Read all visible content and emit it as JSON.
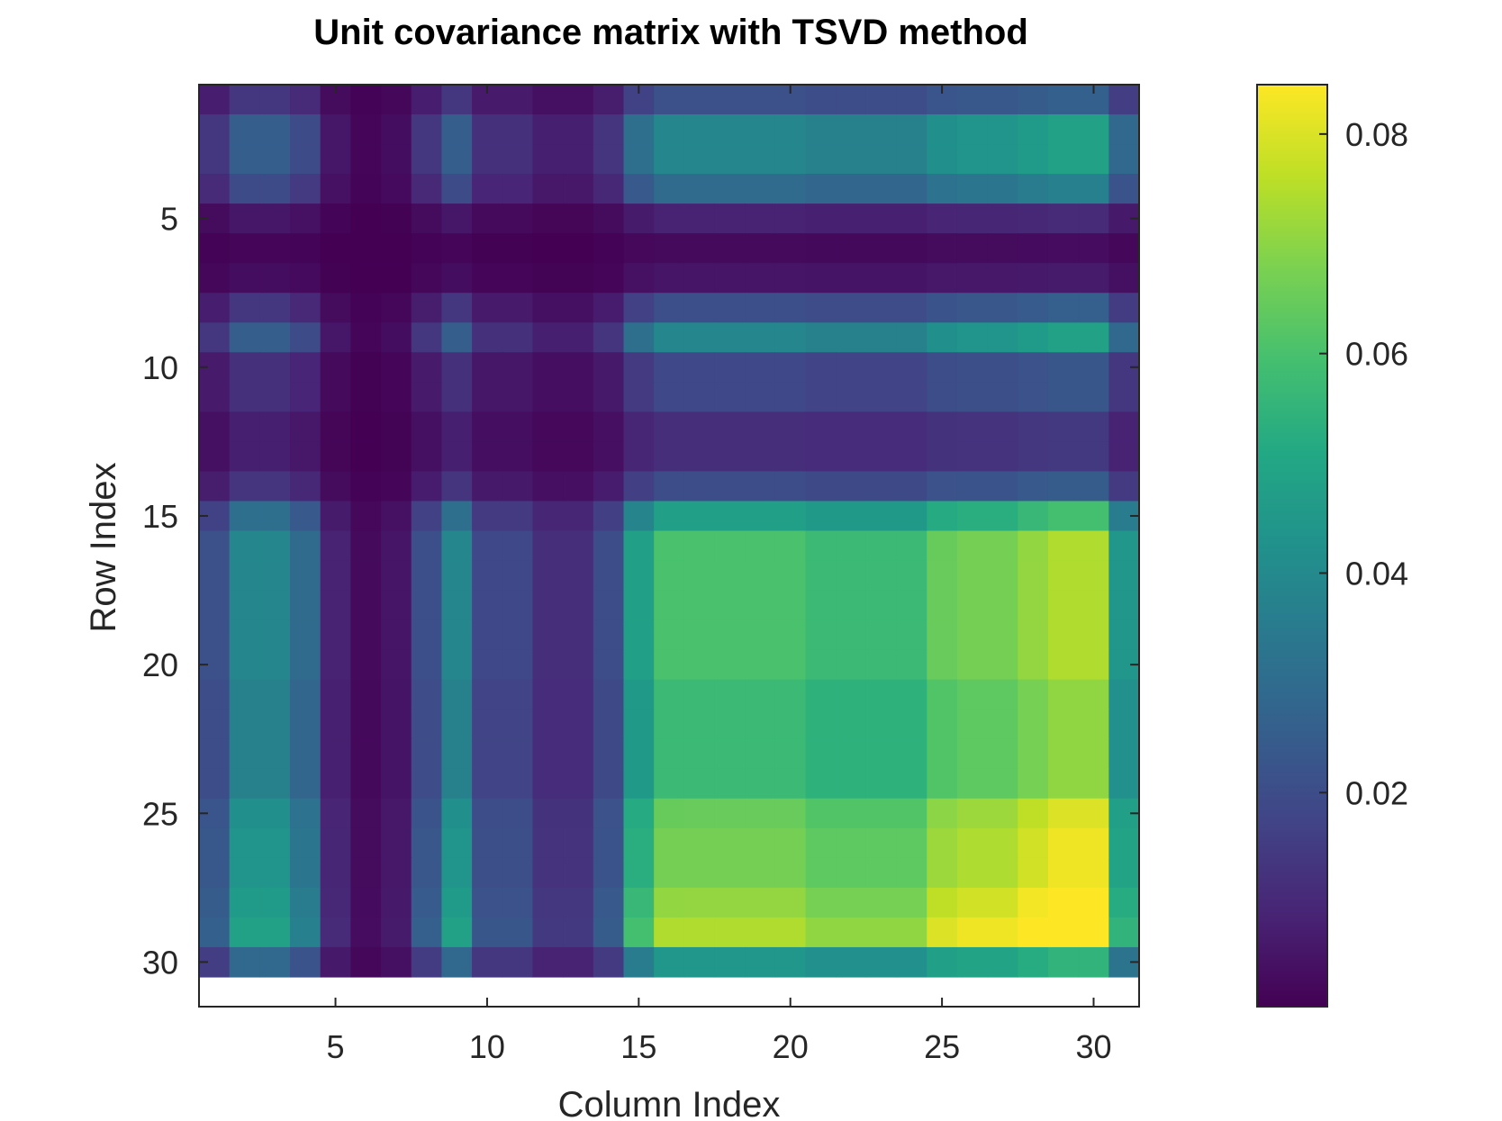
{
  "chart_data": {
    "type": "heatmap",
    "title": "Unit covariance matrix with TSVD method",
    "xlabel": "Column Index",
    "ylabel": "Row Index",
    "rows": 31,
    "cols": 31,
    "x_ticks": [
      5,
      10,
      15,
      20,
      25,
      30
    ],
    "y_ticks": [
      5,
      10,
      15,
      20,
      25,
      30
    ],
    "colorbar": {
      "colormap": "viridis",
      "clim": [
        0.0005,
        0.0845
      ],
      "ticks": [
        0.02,
        0.04,
        0.06,
        0.08
      ],
      "tick_labels": [
        "0.02",
        "0.04",
        "0.06",
        "0.08"
      ]
    },
    "colors": {
      "axis": "#262626",
      "background": "#ffffff",
      "viridis_min": "#440154",
      "viridis_max": "#fde725"
    },
    "matrix": [
      [
        0.0074,
        0.0137,
        0.0137,
        0.0104,
        0.0029,
        0.0009,
        0.0019,
        0.0073,
        0.0137,
        0.0065,
        0.0065,
        0.0041,
        0.0041,
        0.0071,
        0.0168,
        0.0211,
        0.0211,
        0.0211,
        0.0211,
        0.0211,
        0.02,
        0.02,
        0.02,
        0.02,
        0.0227,
        0.0234,
        0.0234,
        0.0248,
        0.0261,
        0.0261,
        0.0155
      ],
      [
        0.0137,
        0.0255,
        0.0255,
        0.0194,
        0.0055,
        0.0017,
        0.0035,
        0.0136,
        0.0255,
        0.0121,
        0.0121,
        0.0076,
        0.0076,
        0.0131,
        0.0312,
        0.0391,
        0.0392,
        0.0392,
        0.0392,
        0.0392,
        0.0371,
        0.0371,
        0.0371,
        0.0371,
        0.0422,
        0.0435,
        0.0435,
        0.046,
        0.0484,
        0.0484,
        0.0288
      ],
      [
        0.0137,
        0.0255,
        0.0255,
        0.0194,
        0.0055,
        0.0017,
        0.0035,
        0.0136,
        0.0255,
        0.0121,
        0.0121,
        0.0076,
        0.0076,
        0.0131,
        0.0312,
        0.0391,
        0.0392,
        0.0392,
        0.0392,
        0.0392,
        0.0371,
        0.0371,
        0.0371,
        0.0371,
        0.0422,
        0.0435,
        0.0435,
        0.046,
        0.0484,
        0.0484,
        0.0288
      ],
      [
        0.0104,
        0.0194,
        0.0194,
        0.0148,
        0.0042,
        0.0013,
        0.0027,
        0.0103,
        0.0194,
        0.0092,
        0.0092,
        0.0058,
        0.0058,
        0.01,
        0.0237,
        0.0298,
        0.0298,
        0.0298,
        0.0298,
        0.0298,
        0.0282,
        0.0282,
        0.0282,
        0.0282,
        0.032,
        0.033,
        0.033,
        0.035,
        0.0368,
        0.0368,
        0.0219
      ],
      [
        0.0029,
        0.0055,
        0.0055,
        0.0042,
        0.0012,
        0.0004,
        0.0008,
        0.0029,
        0.0055,
        0.0026,
        0.0026,
        0.0016,
        0.0016,
        0.0028,
        0.0067,
        0.0084,
        0.0084,
        0.0084,
        0.0084,
        0.0084,
        0.008,
        0.008,
        0.008,
        0.008,
        0.0091,
        0.0094,
        0.0094,
        0.0099,
        0.0104,
        0.0104,
        0.0062
      ],
      [
        0.0009,
        0.0017,
        0.0017,
        0.0013,
        0.0004,
        0.0001,
        0.0002,
        0.0009,
        0.0017,
        0.0008,
        0.0008,
        0.0005,
        0.0005,
        0.0009,
        0.0021,
        0.0026,
        0.0026,
        0.0026,
        0.0026,
        0.0026,
        0.0025,
        0.0025,
        0.0025,
        0.0025,
        0.0028,
        0.0029,
        0.0029,
        0.003,
        0.0032,
        0.0032,
        0.0019
      ],
      [
        0.0019,
        0.0035,
        0.0035,
        0.0027,
        0.0008,
        0.0002,
        0.0005,
        0.0019,
        0.0035,
        0.0017,
        0.0017,
        0.0011,
        0.0011,
        0.0018,
        0.0043,
        0.0054,
        0.0054,
        0.0054,
        0.0054,
        0.0054,
        0.0051,
        0.0051,
        0.0051,
        0.0051,
        0.0058,
        0.006,
        0.006,
        0.0063,
        0.0067,
        0.0067,
        0.004
      ],
      [
        0.0073,
        0.0136,
        0.0136,
        0.0103,
        0.0029,
        0.0009,
        0.0019,
        0.0072,
        0.0136,
        0.0064,
        0.0064,
        0.004,
        0.004,
        0.007,
        0.0166,
        0.0208,
        0.0208,
        0.0208,
        0.0208,
        0.0208,
        0.0197,
        0.0197,
        0.0197,
        0.0197,
        0.0224,
        0.0231,
        0.0231,
        0.0245,
        0.0257,
        0.0257,
        0.0153
      ],
      [
        0.0137,
        0.0255,
        0.0255,
        0.0194,
        0.0055,
        0.0017,
        0.0035,
        0.0136,
        0.0255,
        0.0121,
        0.0121,
        0.0076,
        0.0076,
        0.0131,
        0.0312,
        0.0391,
        0.0392,
        0.0392,
        0.0392,
        0.0392,
        0.0371,
        0.0371,
        0.0371,
        0.0371,
        0.0422,
        0.0435,
        0.0435,
        0.046,
        0.0484,
        0.0484,
        0.0288
      ],
      [
        0.0065,
        0.0121,
        0.0121,
        0.0092,
        0.0026,
        0.0008,
        0.0017,
        0.0064,
        0.0121,
        0.0057,
        0.0057,
        0.0036,
        0.0036,
        0.0062,
        0.0148,
        0.0185,
        0.0186,
        0.0186,
        0.0186,
        0.0186,
        0.0176,
        0.0176,
        0.0176,
        0.0176,
        0.02,
        0.0206,
        0.0206,
        0.0218,
        0.0229,
        0.0229,
        0.0137
      ],
      [
        0.0065,
        0.0121,
        0.0121,
        0.0092,
        0.0026,
        0.0008,
        0.0017,
        0.0064,
        0.0121,
        0.0057,
        0.0057,
        0.0036,
        0.0036,
        0.0062,
        0.0148,
        0.0185,
        0.0186,
        0.0186,
        0.0186,
        0.0186,
        0.0176,
        0.0176,
        0.0176,
        0.0176,
        0.02,
        0.0206,
        0.0206,
        0.0218,
        0.0229,
        0.0229,
        0.0137
      ],
      [
        0.0041,
        0.0076,
        0.0076,
        0.0058,
        0.0016,
        0.0005,
        0.0011,
        0.004,
        0.0076,
        0.0036,
        0.0036,
        0.0023,
        0.0023,
        0.0039,
        0.0093,
        0.0116,
        0.0116,
        0.0116,
        0.0116,
        0.0116,
        0.011,
        0.011,
        0.011,
        0.011,
        0.0125,
        0.0129,
        0.0129,
        0.0137,
        0.0144,
        0.0144,
        0.0086
      ],
      [
        0.0041,
        0.0076,
        0.0076,
        0.0058,
        0.0016,
        0.0005,
        0.0011,
        0.004,
        0.0076,
        0.0036,
        0.0036,
        0.0023,
        0.0023,
        0.0039,
        0.0093,
        0.0116,
        0.0116,
        0.0116,
        0.0116,
        0.0116,
        0.011,
        0.011,
        0.011,
        0.011,
        0.0125,
        0.0129,
        0.0129,
        0.0137,
        0.0144,
        0.0144,
        0.0086
      ],
      [
        0.0071,
        0.0131,
        0.0131,
        0.01,
        0.0028,
        0.0009,
        0.0018,
        0.007,
        0.0131,
        0.0062,
        0.0062,
        0.0039,
        0.0039,
        0.0068,
        0.016,
        0.0201,
        0.0202,
        0.0202,
        0.0202,
        0.0202,
        0.0191,
        0.0191,
        0.0191,
        0.0191,
        0.0217,
        0.0224,
        0.0224,
        0.0237,
        0.0249,
        0.0249,
        0.0148
      ],
      [
        0.0168,
        0.0312,
        0.0312,
        0.0237,
        0.0067,
        0.0021,
        0.0043,
        0.0166,
        0.0312,
        0.0148,
        0.0148,
        0.0093,
        0.0093,
        0.016,
        0.0382,
        0.0479,
        0.0479,
        0.0479,
        0.0479,
        0.0479,
        0.0454,
        0.0454,
        0.0454,
        0.0454,
        0.0516,
        0.0532,
        0.0532,
        0.0563,
        0.0592,
        0.0592,
        0.0353
      ],
      [
        0.0211,
        0.0391,
        0.0391,
        0.0298,
        0.0084,
        0.0026,
        0.0054,
        0.0208,
        0.0391,
        0.0185,
        0.0185,
        0.0116,
        0.0116,
        0.0201,
        0.0479,
        0.0601,
        0.0601,
        0.0601,
        0.0601,
        0.0601,
        0.057,
        0.057,
        0.057,
        0.057,
        0.0648,
        0.0668,
        0.0668,
        0.0707,
        0.0743,
        0.0743,
        0.0443
      ],
      [
        0.0211,
        0.0392,
        0.0392,
        0.0298,
        0.0084,
        0.0026,
        0.0054,
        0.0208,
        0.0392,
        0.0186,
        0.0186,
        0.0116,
        0.0116,
        0.0202,
        0.0479,
        0.0601,
        0.0602,
        0.0602,
        0.0602,
        0.0602,
        0.0571,
        0.0571,
        0.0571,
        0.0571,
        0.0649,
        0.0669,
        0.0669,
        0.0708,
        0.0744,
        0.0744,
        0.0443
      ],
      [
        0.0211,
        0.0392,
        0.0392,
        0.0298,
        0.0084,
        0.0026,
        0.0054,
        0.0208,
        0.0392,
        0.0186,
        0.0186,
        0.0116,
        0.0116,
        0.0202,
        0.0479,
        0.0601,
        0.0602,
        0.0602,
        0.0602,
        0.0602,
        0.0571,
        0.0571,
        0.0571,
        0.0571,
        0.0649,
        0.0669,
        0.0669,
        0.0708,
        0.0744,
        0.0744,
        0.0443
      ],
      [
        0.0211,
        0.0392,
        0.0392,
        0.0298,
        0.0084,
        0.0026,
        0.0054,
        0.0208,
        0.0392,
        0.0186,
        0.0186,
        0.0116,
        0.0116,
        0.0202,
        0.0479,
        0.0601,
        0.0602,
        0.0602,
        0.0602,
        0.0602,
        0.0571,
        0.0571,
        0.0571,
        0.0571,
        0.0649,
        0.0669,
        0.0669,
        0.0708,
        0.0744,
        0.0744,
        0.0443
      ],
      [
        0.0211,
        0.0392,
        0.0392,
        0.0298,
        0.0084,
        0.0026,
        0.0054,
        0.0208,
        0.0392,
        0.0186,
        0.0186,
        0.0116,
        0.0116,
        0.0202,
        0.0479,
        0.0601,
        0.0602,
        0.0602,
        0.0602,
        0.0602,
        0.0571,
        0.0571,
        0.0571,
        0.0571,
        0.0649,
        0.0669,
        0.0669,
        0.0708,
        0.0744,
        0.0744,
        0.0443
      ],
      [
        0.02,
        0.0371,
        0.0371,
        0.0282,
        0.008,
        0.0025,
        0.0051,
        0.0197,
        0.0371,
        0.0176,
        0.0176,
        0.011,
        0.011,
        0.0191,
        0.0454,
        0.057,
        0.0571,
        0.0571,
        0.0571,
        0.0571,
        0.0541,
        0.0541,
        0.0541,
        0.0541,
        0.0615,
        0.0634,
        0.0634,
        0.0671,
        0.0705,
        0.0705,
        0.042
      ],
      [
        0.02,
        0.0371,
        0.0371,
        0.0282,
        0.008,
        0.0025,
        0.0051,
        0.0197,
        0.0371,
        0.0176,
        0.0176,
        0.011,
        0.011,
        0.0191,
        0.0454,
        0.057,
        0.0571,
        0.0571,
        0.0571,
        0.0571,
        0.0541,
        0.0541,
        0.0541,
        0.0541,
        0.0615,
        0.0634,
        0.0634,
        0.0671,
        0.0705,
        0.0705,
        0.042
      ],
      [
        0.02,
        0.0371,
        0.0371,
        0.0282,
        0.008,
        0.0025,
        0.0051,
        0.0197,
        0.0371,
        0.0176,
        0.0176,
        0.011,
        0.011,
        0.0191,
        0.0454,
        0.057,
        0.0571,
        0.0571,
        0.0571,
        0.0571,
        0.0541,
        0.0541,
        0.0541,
        0.0541,
        0.0615,
        0.0634,
        0.0634,
        0.0671,
        0.0705,
        0.0705,
        0.042
      ],
      [
        0.02,
        0.0371,
        0.0371,
        0.0282,
        0.008,
        0.0025,
        0.0051,
        0.0197,
        0.0371,
        0.0176,
        0.0176,
        0.011,
        0.011,
        0.0191,
        0.0454,
        0.057,
        0.0571,
        0.0571,
        0.0571,
        0.0571,
        0.0541,
        0.0541,
        0.0541,
        0.0541,
        0.0615,
        0.0634,
        0.0634,
        0.0671,
        0.0705,
        0.0705,
        0.042
      ],
      [
        0.0227,
        0.0422,
        0.0422,
        0.032,
        0.0091,
        0.0028,
        0.0058,
        0.0224,
        0.0422,
        0.02,
        0.02,
        0.0125,
        0.0125,
        0.0217,
        0.0516,
        0.0648,
        0.0649,
        0.0649,
        0.0649,
        0.0649,
        0.0615,
        0.0615,
        0.0615,
        0.0615,
        0.0699,
        0.072,
        0.072,
        0.0763,
        0.0802,
        0.0802,
        0.0478
      ],
      [
        0.0234,
        0.0435,
        0.0435,
        0.033,
        0.0094,
        0.0029,
        0.006,
        0.0231,
        0.0435,
        0.0206,
        0.0206,
        0.0129,
        0.0129,
        0.0224,
        0.0532,
        0.0668,
        0.0669,
        0.0669,
        0.0669,
        0.0669,
        0.0634,
        0.0634,
        0.0634,
        0.0634,
        0.072,
        0.0742,
        0.0742,
        0.0786,
        0.0826,
        0.0826,
        0.0492
      ],
      [
        0.0234,
        0.0435,
        0.0435,
        0.033,
        0.0094,
        0.0029,
        0.006,
        0.0231,
        0.0435,
        0.0206,
        0.0206,
        0.0129,
        0.0129,
        0.0224,
        0.0532,
        0.0668,
        0.0669,
        0.0669,
        0.0669,
        0.0669,
        0.0634,
        0.0634,
        0.0634,
        0.0634,
        0.072,
        0.0742,
        0.0742,
        0.0786,
        0.0826,
        0.0826,
        0.0492
      ],
      [
        0.0248,
        0.046,
        0.046,
        0.035,
        0.0099,
        0.003,
        0.0063,
        0.0245,
        0.046,
        0.0218,
        0.0218,
        0.0137,
        0.0137,
        0.0237,
        0.0563,
        0.0707,
        0.0708,
        0.0708,
        0.0708,
        0.0708,
        0.0671,
        0.0671,
        0.0671,
        0.0671,
        0.0763,
        0.0786,
        0.0786,
        0.0832,
        0.0845,
        0.0845,
        0.0521
      ],
      [
        0.0261,
        0.0484,
        0.0484,
        0.0368,
        0.0104,
        0.0032,
        0.0067,
        0.0257,
        0.0484,
        0.0229,
        0.0229,
        0.0144,
        0.0144,
        0.0249,
        0.0592,
        0.0743,
        0.0744,
        0.0744,
        0.0744,
        0.0744,
        0.0705,
        0.0705,
        0.0705,
        0.0705,
        0.0802,
        0.0826,
        0.0826,
        0.0845,
        0.0845,
        0.0845,
        0.0548
      ],
      [
        0.0155,
        0.0288,
        0.0288,
        0.0219,
        0.0062,
        0.0019,
        0.004,
        0.0153,
        0.0288,
        0.0137,
        0.0137,
        0.0086,
        0.0086,
        0.0148,
        0.0353,
        0.0443,
        0.0443,
        0.0443,
        0.0443,
        0.0443,
        0.042,
        0.042,
        0.042,
        0.042,
        0.0478,
        0.0492,
        0.0492,
        0.0521,
        0.0548,
        0.0548,
        0.0326
      ]
    ]
  }
}
